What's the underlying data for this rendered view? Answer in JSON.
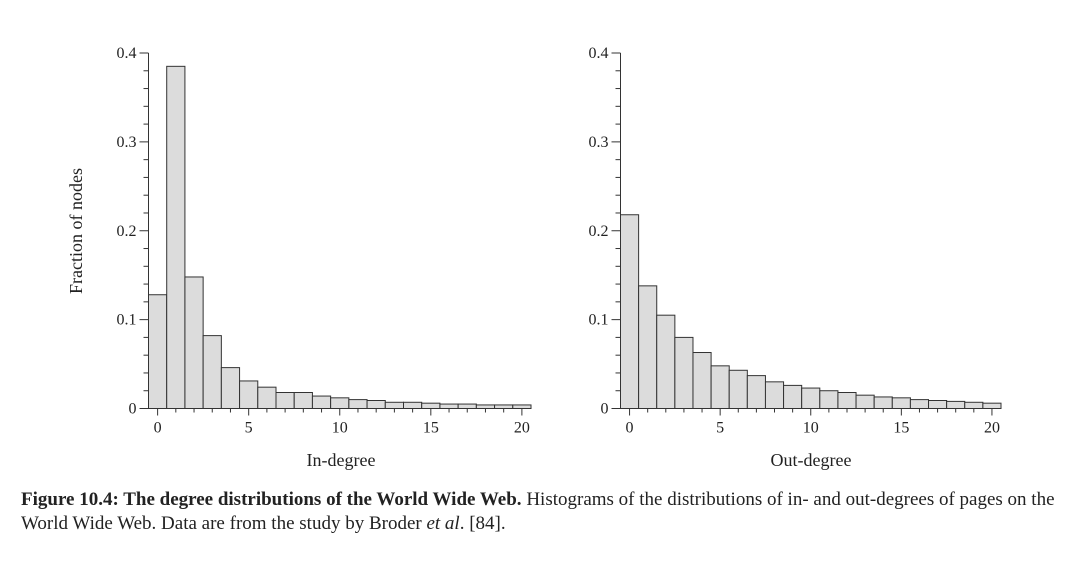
{
  "chart_data": [
    {
      "type": "bar",
      "xlabel": "In-degree",
      "ylabel": "Fraction of nodes",
      "xlim": [
        0,
        20
      ],
      "ylim": [
        0,
        0.4
      ],
      "xticks": [
        "0",
        "5",
        "10",
        "15",
        "20"
      ],
      "yticks": [
        "0",
        "0.1",
        "0.2",
        "0.3",
        "0.4"
      ],
      "grid": false,
      "colors": {
        "bar_fill": "#dcdcdc",
        "bar_stroke": "#333333"
      },
      "x": [
        0,
        1,
        2,
        3,
        4,
        5,
        6,
        7,
        8,
        9,
        10,
        11,
        12,
        13,
        14,
        15,
        16,
        17,
        18,
        19,
        20
      ],
      "values": [
        0.128,
        0.385,
        0.148,
        0.082,
        0.046,
        0.031,
        0.024,
        0.018,
        0.018,
        0.014,
        0.012,
        0.01,
        0.009,
        0.007,
        0.007,
        0.006,
        0.005,
        0.005,
        0.004,
        0.004,
        0.004
      ]
    },
    {
      "type": "bar",
      "xlabel": "Out-degree",
      "ylabel": "",
      "xlim": [
        0,
        20
      ],
      "ylim": [
        0,
        0.4
      ],
      "xticks": [
        "0",
        "5",
        "10",
        "15",
        "20"
      ],
      "yticks": [
        "0",
        "0.1",
        "0.2",
        "0.3",
        "0.4"
      ],
      "grid": false,
      "colors": {
        "bar_fill": "#dcdcdc",
        "bar_stroke": "#333333"
      },
      "x": [
        0,
        1,
        2,
        3,
        4,
        5,
        6,
        7,
        8,
        9,
        10,
        11,
        12,
        13,
        14,
        15,
        16,
        17,
        18,
        19,
        20
      ],
      "values": [
        0.218,
        0.138,
        0.105,
        0.08,
        0.063,
        0.048,
        0.043,
        0.037,
        0.03,
        0.026,
        0.023,
        0.02,
        0.018,
        0.015,
        0.013,
        0.012,
        0.01,
        0.009,
        0.008,
        0.007,
        0.006
      ]
    }
  ],
  "caption": {
    "bold": "Figure 10.4: The degree distributions of the World Wide Web.",
    "text_before_italic": " Histograms of the distributions of in- and out-degrees of pages on the World Wide Web. Data are from the study by Broder ",
    "italic": "et al",
    "text_after_italic": ". [84]."
  }
}
